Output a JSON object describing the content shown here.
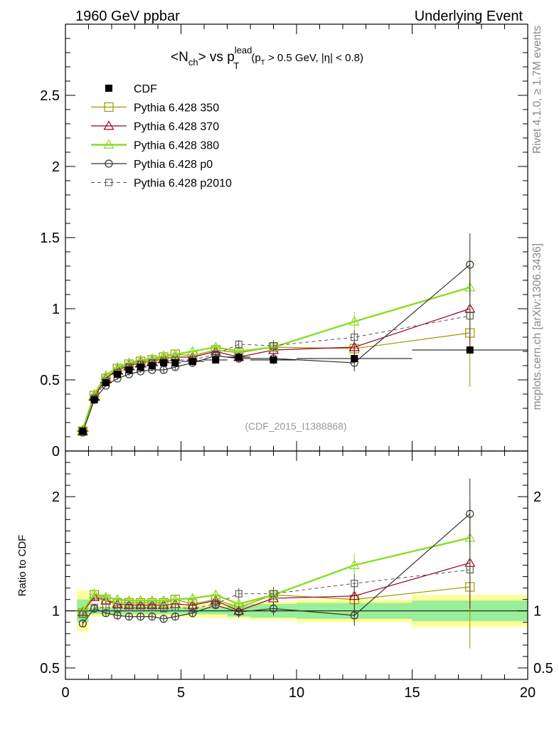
{
  "header": {
    "left": "1960 GeV ppbar",
    "right": "Underlying Event"
  },
  "side_labels": {
    "rivet": "Rivet 4.1.0, ≥ 1.7M events",
    "mcplots": "mcplots.cern.ch [arXiv:1306.3436]"
  },
  "chart_data": [
    {
      "type": "line",
      "panel": "main",
      "title": {
        "open": "<N",
        "sub1": "ch",
        "mid": "> vs p",
        "sup": "lead",
        "sub2": "T",
        "cond_open": "(p",
        "cond_sub": "T",
        "cond_rest": " > 0.5 GeV, |η| < 0.8)"
      },
      "watermark": "(CDF_2015_I1388868)",
      "xlim": [
        0,
        20
      ],
      "ylim": [
        0,
        3
      ],
      "ytick_values": [
        0,
        0.5,
        1,
        1.5,
        2,
        2.5
      ],
      "ytick_labels": [
        "0",
        "0.5",
        "1",
        "1.5",
        "2",
        "2.5"
      ],
      "legend": [
        {
          "key": "cdf",
          "label": "CDF"
        },
        {
          "key": "p350",
          "label": "Pythia 6.428 350"
        },
        {
          "key": "p370",
          "label": "Pythia 6.428 370"
        },
        {
          "key": "p380",
          "label": "Pythia 6.428 380"
        },
        {
          "key": "p0",
          "label": "Pythia 6.428 p0"
        },
        {
          "key": "p2010",
          "label": "Pythia 6.428 p2010"
        }
      ],
      "data": {
        "name": "CDF",
        "x": [
          0.75,
          1.25,
          1.75,
          2.25,
          2.75,
          3.25,
          3.75,
          4.25,
          4.75,
          5.5,
          6.5,
          7.5,
          9.0,
          12.5,
          17.5
        ],
        "y": [
          0.14,
          0.36,
          0.48,
          0.54,
          0.57,
          0.59,
          0.6,
          0.62,
          0.62,
          0.63,
          0.64,
          0.66,
          0.64,
          0.65,
          0.71
        ],
        "yerr": [
          0.01,
          0.01,
          0.01,
          0.01,
          0.01,
          0.01,
          0.01,
          0.01,
          0.01,
          0.01,
          0.01,
          0.01,
          0.01,
          0.01,
          0.02
        ],
        "xedges": [
          0.5,
          1.0,
          1.5,
          2.0,
          2.5,
          3.0,
          3.5,
          4.0,
          4.5,
          5.0,
          6.0,
          7.0,
          8.0,
          10.0,
          15.0,
          20.0
        ]
      },
      "series": [
        {
          "key": "p350",
          "name": "Pythia 6.428 350",
          "color": "#999900",
          "marker": "square",
          "dash": false,
          "width": 1.2,
          "x": [
            0.75,
            1.25,
            1.75,
            2.25,
            2.75,
            3.25,
            3.75,
            4.25,
            4.75,
            5.5,
            6.5,
            7.5,
            9.0,
            12.5,
            17.5
          ],
          "y": [
            0.14,
            0.39,
            0.51,
            0.58,
            0.61,
            0.63,
            0.64,
            0.66,
            0.68,
            0.67,
            0.71,
            0.69,
            0.73,
            0.72,
            0.83
          ],
          "yerr": [
            0.01,
            0.01,
            0.01,
            0.01,
            0.01,
            0.01,
            0.01,
            0.02,
            0.02,
            0.02,
            0.02,
            0.03,
            0.04,
            0.06,
            0.38
          ]
        },
        {
          "key": "p370",
          "name": "Pythia 6.428 370",
          "color": "#990022",
          "marker": "triangle",
          "dash": false,
          "width": 1.2,
          "x": [
            0.75,
            1.25,
            1.75,
            2.25,
            2.75,
            3.25,
            3.75,
            4.25,
            4.75,
            5.5,
            6.5,
            7.5,
            9.0,
            12.5,
            17.5
          ],
          "y": [
            0.14,
            0.38,
            0.51,
            0.57,
            0.6,
            0.62,
            0.63,
            0.65,
            0.66,
            0.66,
            0.7,
            0.66,
            0.71,
            0.73,
            1.0
          ],
          "yerr": [
            0.01,
            0.01,
            0.01,
            0.01,
            0.01,
            0.01,
            0.01,
            0.02,
            0.02,
            0.02,
            0.02,
            0.03,
            0.04,
            0.06,
            0.28
          ]
        },
        {
          "key": "p380",
          "name": "Pythia 6.428 380",
          "color": "#88dd22",
          "marker": "triangle",
          "dash": false,
          "width": 2.4,
          "x": [
            0.75,
            1.25,
            1.75,
            2.25,
            2.75,
            3.25,
            3.75,
            4.25,
            4.75,
            5.5,
            6.5,
            7.5,
            9.0,
            12.5,
            17.5
          ],
          "y": [
            0.15,
            0.4,
            0.53,
            0.59,
            0.62,
            0.64,
            0.65,
            0.67,
            0.68,
            0.7,
            0.73,
            0.7,
            0.73,
            0.91,
            1.15
          ],
          "yerr": [
            0.01,
            0.01,
            0.01,
            0.01,
            0.01,
            0.01,
            0.01,
            0.02,
            0.02,
            0.02,
            0.02,
            0.03,
            0.04,
            0.07,
            0.22
          ]
        },
        {
          "key": "p0",
          "name": "Pythia 6.428 p0",
          "color": "#333333",
          "marker": "circle",
          "dash": false,
          "width": 1.2,
          "x": [
            0.75,
            1.25,
            1.75,
            2.25,
            2.75,
            3.25,
            3.75,
            4.25,
            4.75,
            5.5,
            6.5,
            7.5,
            9.0,
            12.5,
            17.5
          ],
          "y": [
            0.13,
            0.36,
            0.46,
            0.51,
            0.54,
            0.56,
            0.57,
            0.57,
            0.59,
            0.62,
            0.67,
            0.65,
            0.65,
            0.62,
            1.31
          ],
          "yerr": [
            0.01,
            0.01,
            0.01,
            0.01,
            0.01,
            0.01,
            0.01,
            0.02,
            0.02,
            0.02,
            0.02,
            0.03,
            0.04,
            0.06,
            0.22
          ]
        },
        {
          "key": "p2010",
          "name": "Pythia 6.428 p2010",
          "color": "#555555",
          "marker": "square-small",
          "dash": true,
          "width": 1.0,
          "x": [
            0.75,
            1.25,
            1.75,
            2.25,
            2.75,
            3.25,
            3.75,
            4.25,
            4.75,
            5.5,
            6.5,
            7.5,
            9.0,
            12.5,
            17.5
          ],
          "y": [
            0.14,
            0.37,
            0.49,
            0.55,
            0.59,
            0.61,
            0.62,
            0.63,
            0.64,
            0.64,
            0.68,
            0.75,
            0.74,
            0.8,
            0.95
          ],
          "yerr": [
            0.01,
            0.01,
            0.01,
            0.01,
            0.01,
            0.01,
            0.01,
            0.02,
            0.02,
            0.02,
            0.02,
            0.03,
            0.04,
            0.05,
            0.18
          ]
        }
      ]
    },
    {
      "type": "line",
      "panel": "ratio",
      "ylabel": "Ratio to CDF",
      "xlim": [
        0,
        20
      ],
      "ylim": [
        0.4,
        2.4
      ],
      "ytick_values": [
        0.5,
        1,
        2
      ],
      "ytick_labels": [
        "0.5",
        "1",
        "2"
      ],
      "xtick_values": [
        0,
        5,
        10,
        15,
        20
      ],
      "xtick_labels": [
        "0",
        "5",
        "10",
        "15",
        "20"
      ],
      "bands": {
        "xedges": [
          0.5,
          1.0,
          1.5,
          2.0,
          2.5,
          3.0,
          3.5,
          4.0,
          4.5,
          5.0,
          6.0,
          7.0,
          8.0,
          10.0,
          15.0,
          20.0
        ],
        "inner": [
          0.1,
          0.03,
          0.03,
          0.03,
          0.03,
          0.03,
          0.03,
          0.03,
          0.03,
          0.03,
          0.03,
          0.05,
          0.06,
          0.07,
          0.09
        ],
        "outer": [
          0.18,
          0.05,
          0.05,
          0.05,
          0.05,
          0.05,
          0.05,
          0.05,
          0.05,
          0.06,
          0.06,
          0.07,
          0.08,
          0.1,
          0.14
        ]
      },
      "series": [
        {
          "key": "p350",
          "y": [
            0.98,
            1.14,
            1.1,
            1.07,
            1.07,
            1.07,
            1.07,
            1.07,
            1.1,
            1.06,
            1.1,
            1.03,
            1.14,
            1.1,
            1.21
          ],
          "yerr": [
            0.03,
            0.03,
            0.03,
            0.03,
            0.03,
            0.03,
            0.03,
            0.03,
            0.03,
            0.03,
            0.03,
            0.05,
            0.06,
            0.09,
            0.54
          ]
        },
        {
          "key": "p370",
          "y": [
            0.99,
            1.12,
            1.09,
            1.06,
            1.05,
            1.05,
            1.05,
            1.05,
            1.06,
            1.05,
            1.09,
            1.0,
            1.11,
            1.13,
            1.42
          ],
          "yerr": [
            0.03,
            0.03,
            0.03,
            0.03,
            0.03,
            0.03,
            0.03,
            0.03,
            0.03,
            0.03,
            0.03,
            0.05,
            0.06,
            0.09,
            0.4
          ]
        },
        {
          "key": "p380",
          "y": [
            1.0,
            1.15,
            1.12,
            1.1,
            1.09,
            1.09,
            1.09,
            1.09,
            1.1,
            1.11,
            1.14,
            1.06,
            1.14,
            1.4,
            1.64
          ],
          "yerr": [
            0.03,
            0.03,
            0.03,
            0.03,
            0.03,
            0.03,
            0.03,
            0.03,
            0.03,
            0.03,
            0.03,
            0.05,
            0.06,
            0.1,
            0.32
          ]
        },
        {
          "key": "p0",
          "y": [
            0.89,
            1.02,
            0.98,
            0.96,
            0.95,
            0.95,
            0.95,
            0.93,
            0.95,
            0.98,
            1.05,
            0.99,
            1.02,
            0.96,
            1.85
          ],
          "yerr": [
            0.03,
            0.03,
            0.03,
            0.03,
            0.03,
            0.03,
            0.03,
            0.03,
            0.03,
            0.03,
            0.03,
            0.05,
            0.06,
            0.09,
            0.31
          ]
        },
        {
          "key": "p2010",
          "y": [
            0.97,
            1.03,
            1.03,
            1.02,
            1.03,
            1.03,
            1.03,
            1.02,
            1.03,
            1.02,
            1.06,
            1.15,
            1.15,
            1.24,
            1.36
          ],
          "yerr": [
            0.03,
            0.03,
            0.03,
            0.03,
            0.03,
            0.03,
            0.03,
            0.03,
            0.03,
            0.03,
            0.03,
            0.05,
            0.06,
            0.08,
            0.26
          ]
        }
      ]
    }
  ]
}
